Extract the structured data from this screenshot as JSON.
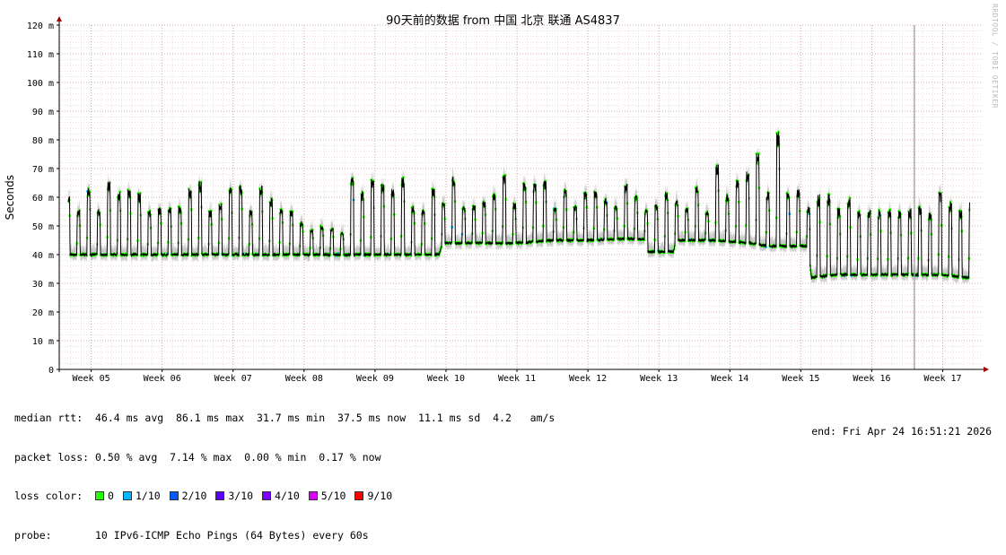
{
  "title": "90天前的数据 from 中国 北京 联通 AS4837",
  "watermark": "RRDTOOL / TOBI OETIKER",
  "chart_data": {
    "type": "line",
    "title": "90天前的数据 from 中国 北京 联通 AS4837",
    "ylabel": "Seconds",
    "ylim": [
      0,
      120
    ],
    "yticks": [
      0,
      10,
      20,
      30,
      40,
      50,
      60,
      70,
      80,
      90,
      100,
      110,
      120
    ],
    "ytick_labels": [
      "0",
      "10 m",
      "20 m",
      "30 m",
      "40 m",
      "50 m",
      "60 m",
      "70 m",
      "80 m",
      "90 m",
      "100 m",
      "110 m",
      "120 m"
    ],
    "xticks": [
      "Week 05",
      "Week 06",
      "Week 07",
      "Week 08",
      "Week 09",
      "Week 10",
      "Week 11",
      "Week 12",
      "Week 13",
      "Week 14",
      "Week 15",
      "Week 16",
      "Week 17"
    ],
    "grid": true,
    "series": [
      {
        "name": "median rtt",
        "unit": "ms",
        "x_unit": "week (fractional)",
        "points": [
          [
            4.7,
            40
          ],
          [
            5.0,
            40
          ],
          [
            5.5,
            40
          ],
          [
            6.0,
            40
          ],
          [
            6.5,
            40
          ],
          [
            7.0,
            40
          ],
          [
            7.5,
            40
          ],
          [
            8.0,
            40
          ],
          [
            8.5,
            40
          ],
          [
            9.0,
            40
          ],
          [
            9.5,
            40
          ],
          [
            9.9,
            40
          ],
          [
            9.95,
            44
          ],
          [
            10.5,
            44
          ],
          [
            11.0,
            44
          ],
          [
            11.5,
            45
          ],
          [
            12.0,
            45
          ],
          [
            12.5,
            45.5
          ],
          [
            12.8,
            45.5
          ],
          [
            12.85,
            41
          ],
          [
            13.2,
            41
          ],
          [
            13.25,
            45
          ],
          [
            13.8,
            45
          ],
          [
            14.3,
            44
          ],
          [
            14.5,
            43
          ],
          [
            15.0,
            43
          ],
          [
            15.1,
            43
          ],
          [
            15.15,
            32
          ],
          [
            15.5,
            33
          ],
          [
            16.0,
            33
          ],
          [
            16.5,
            33
          ],
          [
            17.0,
            33
          ],
          [
            17.3,
            32
          ]
        ],
        "peaks_summary": {
          "typical_daily_peak_ms": [
            55,
            68
          ],
          "week14_peak_ms": 86,
          "week15_17_peak_ms": [
            55,
            62
          ]
        }
      }
    ],
    "annotations": [
      {
        "type": "vertical_line",
        "x_week": 16.6,
        "label": ""
      }
    ]
  },
  "stats": {
    "median_rtt": "median rtt:  46.4 ms avg  86.1 ms max  31.7 ms min  37.5 ms now  11.1 ms sd  4.2   am/s",
    "packet_loss": "packet loss: 0.50 % avg  7.14 % max  0.00 % min  0.17 % now",
    "loss_color_label": "loss color:",
    "loss_colors": [
      {
        "label": "0",
        "color": "#26ff00"
      },
      {
        "label": "1/10",
        "color": "#00b8ff"
      },
      {
        "label": "2/10",
        "color": "#0059ff"
      },
      {
        "label": "3/10",
        "color": "#5e00ff"
      },
      {
        "label": "4/10",
        "color": "#7e00ff"
      },
      {
        "label": "5/10",
        "color": "#dd00ff"
      },
      {
        "label": "9/10",
        "color": "#ff0000"
      }
    ],
    "probe": "probe:       10 IPv6-ICMP Echo Pings (64 Bytes) every 60s",
    "end": "end: Fri Apr 24 16:51:21 2026"
  },
  "colors": {
    "grid_minor": "#e8c8c8",
    "grid_major": "#c89898",
    "smoke": "#bdbdbd",
    "median_line": "#000000",
    "axis_arrow": "#a00000"
  }
}
